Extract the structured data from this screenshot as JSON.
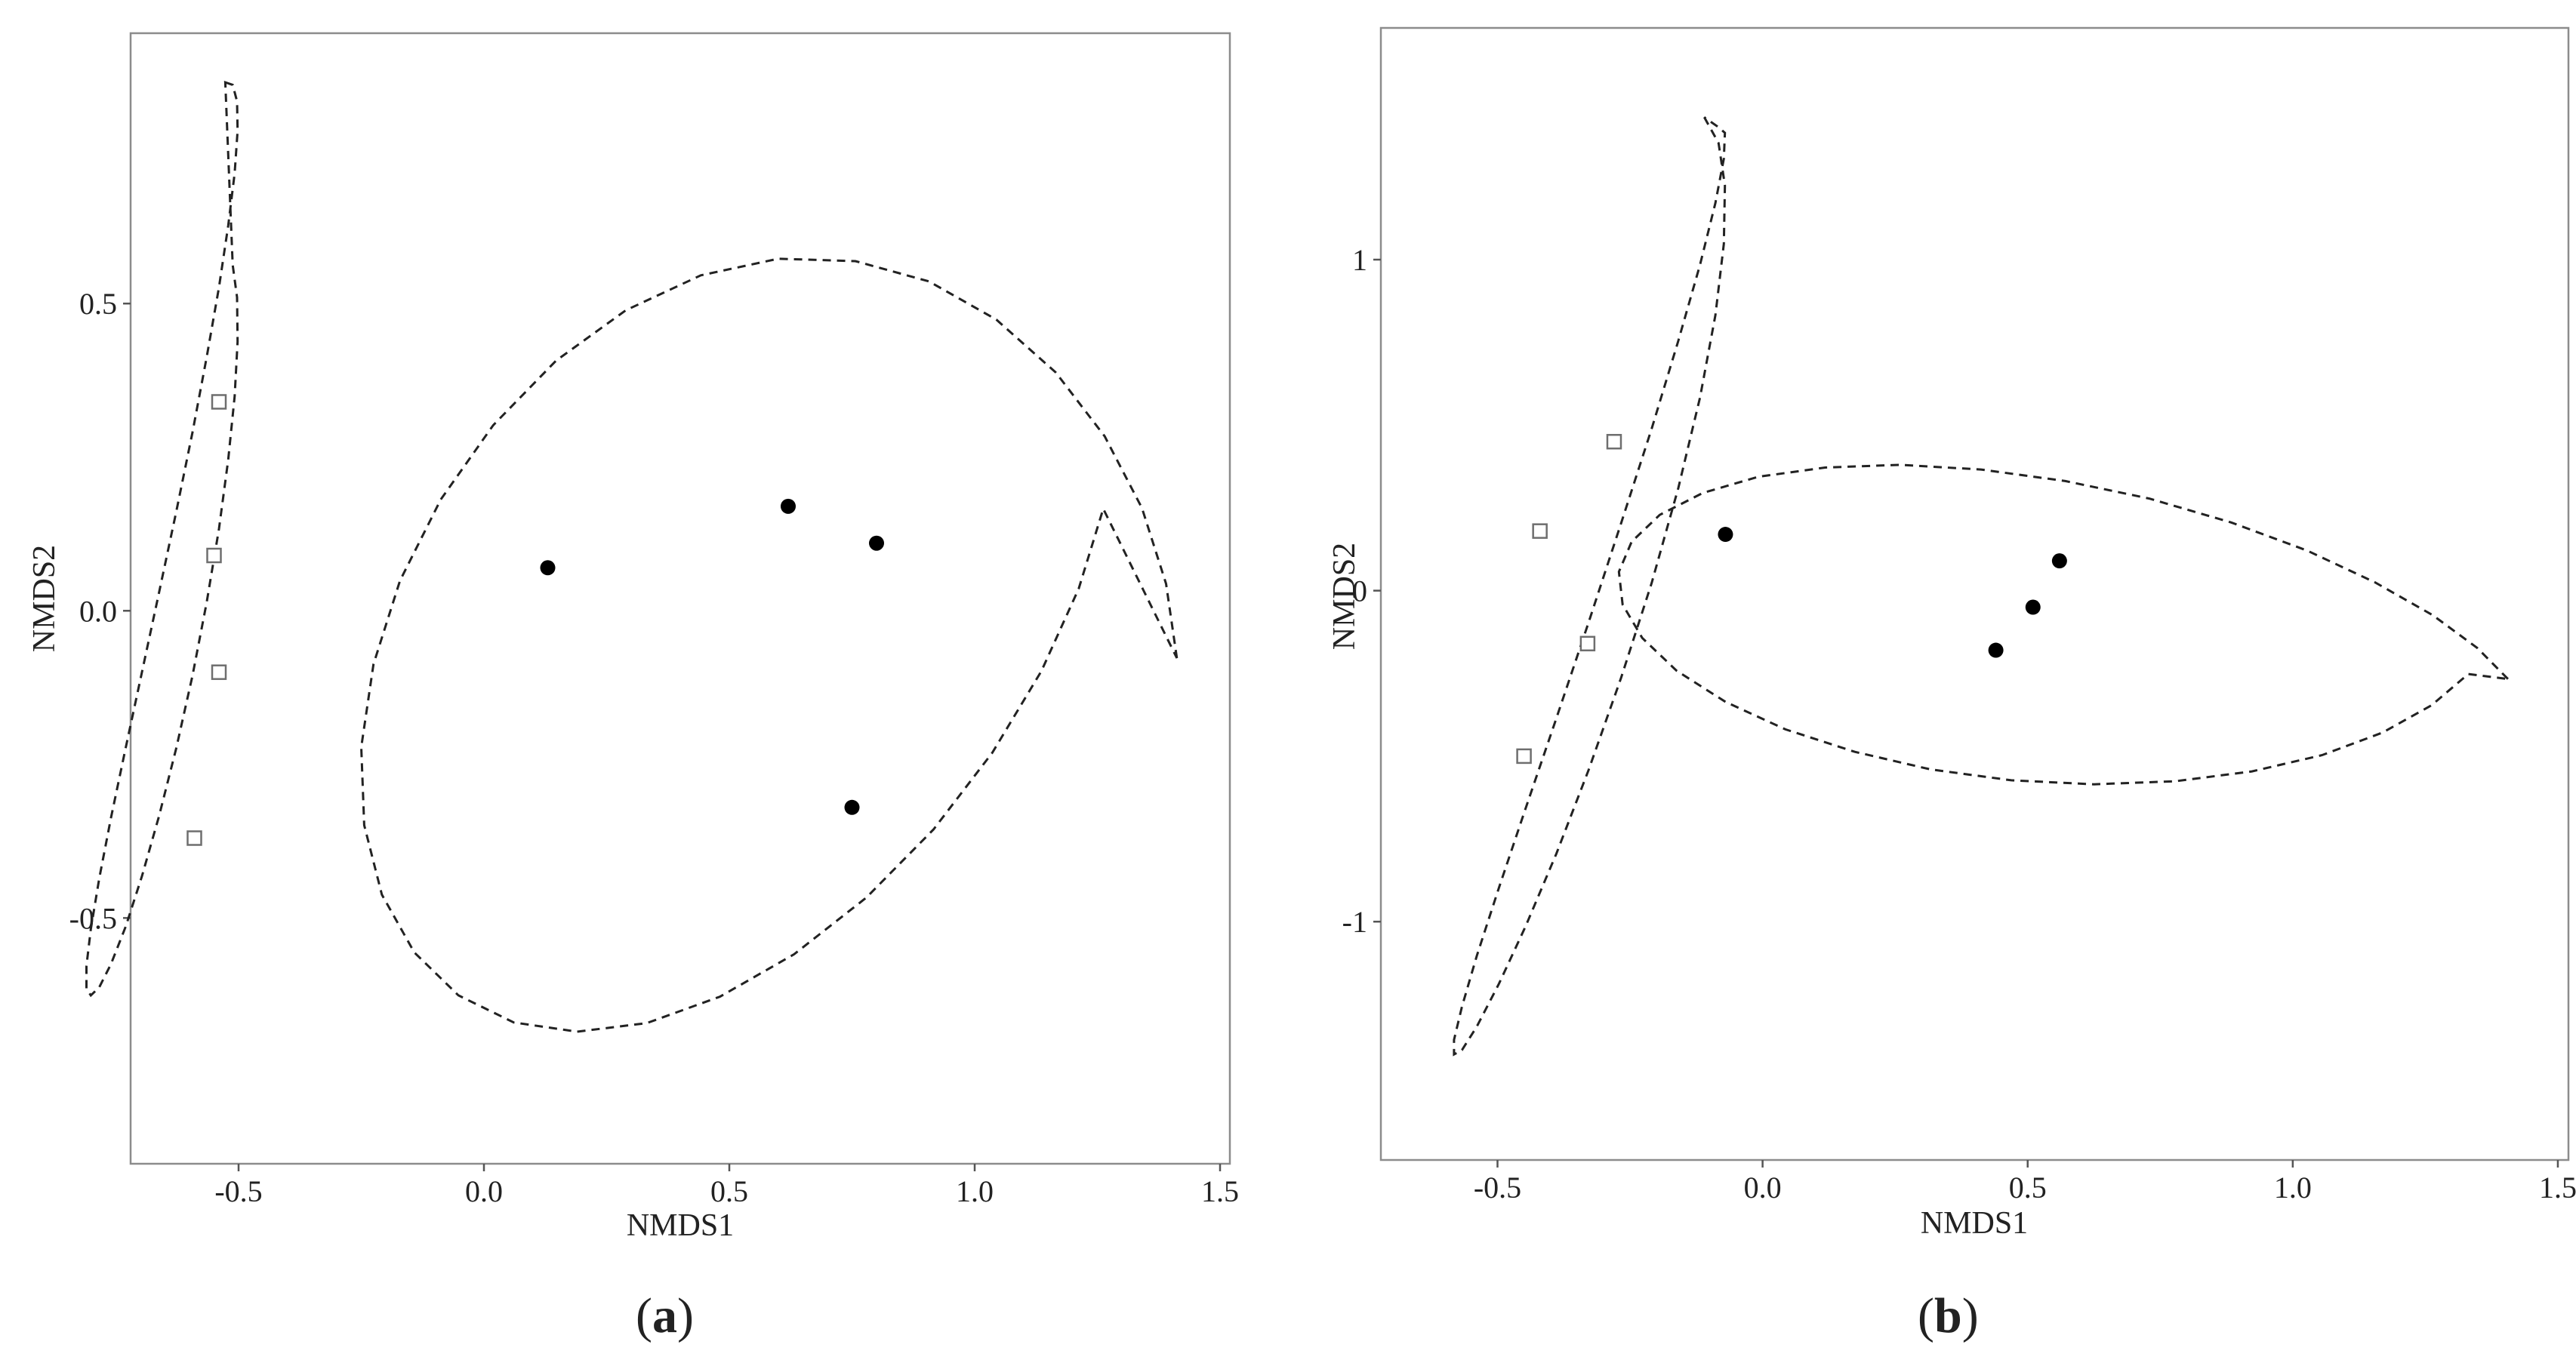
{
  "chart_data": [
    {
      "type": "scatter",
      "panel_label": "a",
      "xlabel": "NMDS1",
      "ylabel": "NMDS2",
      "xlim": [
        -0.72,
        1.52
      ],
      "ylim": [
        -0.9,
        0.94
      ],
      "x_ticks": [
        -0.5,
        0.0,
        0.5,
        1.0,
        1.5
      ],
      "x_tick_labels": [
        "-0.5",
        "0.0",
        "0.5",
        "1.0",
        "1.5"
      ],
      "y_ticks": [
        -0.5,
        0.0,
        0.5
      ],
      "y_tick_labels": [
        "-0.5",
        "0.0",
        "0.5"
      ],
      "grid": false,
      "series": [
        {
          "marker": "open-square",
          "points": [
            {
              "x": -0.54,
              "y": 0.34
            },
            {
              "x": -0.55,
              "y": 0.09
            },
            {
              "x": -0.54,
              "y": -0.1
            },
            {
              "x": -0.59,
              "y": -0.37
            }
          ]
        },
        {
          "marker": "filled-circle",
          "points": [
            {
              "x": 0.13,
              "y": 0.07
            },
            {
              "x": 0.62,
              "y": 0.17
            },
            {
              "x": 0.8,
              "y": 0.11
            },
            {
              "x": 0.75,
              "y": -0.32
            }
          ]
        }
      ],
      "ellipses": [
        {
          "path": [
            [
              -0.527,
              0.86
            ],
            [
              -0.512,
              0.856
            ],
            [
              -0.503,
              0.829
            ],
            [
              -0.502,
              0.781
            ],
            [
              -0.508,
              0.712
            ],
            [
              -0.521,
              0.627
            ],
            [
              -0.54,
              0.526
            ],
            [
              -0.565,
              0.413
            ],
            [
              -0.594,
              0.29
            ],
            [
              -0.627,
              0.161
            ],
            [
              -0.662,
              0.03
            ],
            [
              -0.697,
              -0.1
            ],
            [
              -0.73,
              -0.223
            ],
            [
              -0.76,
              -0.337
            ],
            [
              -0.784,
              -0.436
            ],
            [
              -0.801,
              -0.518
            ],
            [
              -0.81,
              -0.578
            ],
            [
              -0.81,
              -0.615
            ],
            [
              -0.801,
              -0.626
            ],
            [
              -0.784,
              -0.613
            ],
            [
              -0.76,
              -0.575
            ],
            [
              -0.73,
              -0.514
            ],
            [
              -0.697,
              -0.432
            ],
            [
              -0.662,
              -0.334
            ],
            [
              -0.627,
              -0.224
            ],
            [
              -0.594,
              -0.106
            ],
            [
              -0.565,
              0.014
            ],
            [
              -0.54,
              0.133
            ],
            [
              -0.521,
              0.246
            ],
            [
              -0.508,
              0.349
            ],
            [
              -0.502,
              0.438
            ],
            [
              -0.503,
              0.51
            ],
            [
              -0.512,
              0.563
            ],
            [
              -0.527,
              0.86
            ]
          ]
        },
        {
          "path": [
            [
              1.412,
              -0.077
            ],
            [
              1.39,
              0.044
            ],
            [
              1.341,
              0.167
            ],
            [
              1.265,
              0.284
            ],
            [
              1.165,
              0.388
            ],
            [
              1.044,
              0.474
            ],
            [
              0.907,
              0.536
            ],
            [
              0.757,
              0.569
            ],
            [
              0.6,
              0.573
            ],
            [
              0.442,
              0.546
            ],
            [
              0.289,
              0.489
            ],
            [
              0.147,
              0.407
            ],
            [
              0.019,
              0.302
            ],
            [
              -0.088,
              0.181
            ],
            [
              -0.171,
              0.049
            ],
            [
              -0.225,
              -0.087
            ],
            [
              -0.25,
              -0.222
            ],
            [
              -0.244,
              -0.349
            ],
            [
              -0.208,
              -0.462
            ],
            [
              -0.142,
              -0.556
            ],
            [
              -0.052,
              -0.626
            ],
            [
              0.061,
              -0.67
            ],
            [
              0.19,
              -0.685
            ],
            [
              0.332,
              -0.671
            ],
            [
              0.481,
              -0.628
            ],
            [
              0.632,
              -0.559
            ],
            [
              0.779,
              -0.467
            ],
            [
              0.916,
              -0.356
            ],
            [
              1.036,
              -0.231
            ],
            [
              1.136,
              -0.098
            ],
            [
              1.212,
              0.036
            ],
            [
              1.262,
              0.166
            ],
            [
              1.412,
              -0.077
            ]
          ]
        }
      ]
    },
    {
      "type": "scatter",
      "panel_label": "b",
      "xlabel": "NMDS1",
      "ylabel": "NMDS2",
      "xlim": [
        -0.72,
        1.52
      ],
      "ylim": [
        -1.72,
        1.7
      ],
      "x_ticks": [
        -0.5,
        0.0,
        0.5,
        1.0,
        1.5
      ],
      "x_tick_labels": [
        "-0.5",
        "0.0",
        "0.5",
        "1.0",
        "1.5"
      ],
      "y_ticks": [
        -1,
        0,
        1
      ],
      "y_tick_labels": [
        "-1",
        "0",
        "1"
      ],
      "grid": false,
      "series": [
        {
          "marker": "open-square",
          "points": [
            {
              "x": -0.28,
              "y": 0.45
            },
            {
              "x": -0.42,
              "y": 0.18
            },
            {
              "x": -0.33,
              "y": -0.16
            },
            {
              "x": -0.45,
              "y": -0.5
            }
          ]
        },
        {
          "marker": "filled-circle",
          "points": [
            {
              "x": -0.07,
              "y": 0.17
            },
            {
              "x": 0.44,
              "y": -0.18
            },
            {
              "x": 0.51,
              "y": -0.05
            },
            {
              "x": 0.56,
              "y": 0.09
            }
          ]
        }
      ],
      "ellipses": [
        {
          "path": [
            [
              -0.11,
              1.43
            ],
            [
              -0.083,
              1.352
            ],
            [
              -0.071,
              1.224
            ],
            [
              -0.073,
              1.048
            ],
            [
              -0.089,
              0.832
            ],
            [
              -0.118,
              0.583
            ],
            [
              -0.159,
              0.31
            ],
            [
              -0.209,
              0.024
            ],
            [
              -0.267,
              -0.264
            ],
            [
              -0.328,
              -0.541
            ],
            [
              -0.389,
              -0.795
            ],
            [
              -0.447,
              -1.014
            ],
            [
              -0.498,
              -1.19
            ],
            [
              -0.539,
              -1.317
            ],
            [
              -0.567,
              -1.388
            ],
            [
              -0.582,
              -1.401
            ],
            [
              -0.582,
              -1.357
            ],
            [
              -0.567,
              -1.257
            ],
            [
              -0.539,
              -1.103
            ],
            [
              -0.498,
              -0.901
            ],
            [
              -0.447,
              -0.658
            ],
            [
              -0.389,
              -0.386
            ],
            [
              -0.328,
              -0.095
            ],
            [
              -0.267,
              0.203
            ],
            [
              -0.209,
              0.49
            ],
            [
              -0.159,
              0.755
            ],
            [
              -0.118,
              0.984
            ],
            [
              -0.089,
              1.171
            ],
            [
              -0.073,
              1.305
            ],
            [
              -0.071,
              1.383
            ],
            [
              -0.083,
              1.4
            ],
            [
              -0.11,
              1.43
            ]
          ]
        },
        {
          "path": [
            [
              1.406,
              -0.267
            ],
            [
              1.348,
              -0.173
            ],
            [
              1.264,
              -0.074
            ],
            [
              1.155,
              0.025
            ],
            [
              1.027,
              0.121
            ],
            [
              0.884,
              0.206
            ],
            [
              0.73,
              0.278
            ],
            [
              0.571,
              0.331
            ],
            [
              0.412,
              0.366
            ],
            [
              0.259,
              0.38
            ],
            [
              0.118,
              0.372
            ],
            [
              -0.008,
              0.344
            ],
            [
              -0.113,
              0.295
            ],
            [
              -0.194,
              0.229
            ],
            [
              -0.247,
              0.148
            ],
            [
              -0.271,
              0.057
            ],
            [
              -0.264,
              -0.042
            ],
            [
              -0.227,
              -0.143
            ],
            [
              -0.162,
              -0.242
            ],
            [
              -0.07,
              -0.336
            ],
            [
              0.043,
              -0.419
            ],
            [
              0.174,
              -0.487
            ],
            [
              0.317,
              -0.54
            ],
            [
              0.469,
              -0.573
            ],
            [
              0.625,
              -0.585
            ],
            [
              0.778,
              -0.576
            ],
            [
              0.923,
              -0.546
            ],
            [
              1.055,
              -0.497
            ],
            [
              1.169,
              -0.429
            ],
            [
              1.262,
              -0.346
            ],
            [
              1.331,
              -0.252
            ],
            [
              1.406,
              -0.267
            ]
          ]
        }
      ]
    }
  ]
}
